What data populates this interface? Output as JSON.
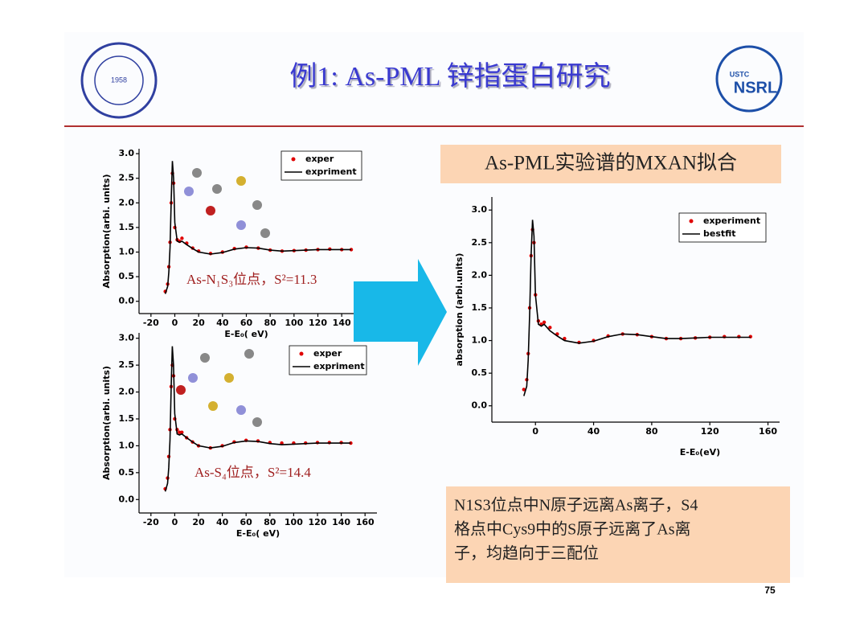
{
  "header": {
    "title": "例1: As-PML 锌指蛋白研究",
    "logo_left": "1958",
    "logo_right_top": "USTC",
    "logo_right_bottom": "NSRL"
  },
  "summary": {
    "lines": [
      "N1S3位点中N原子远离As离子，S4",
      "格点中Cys9中的S原子远离了As离",
      "子，均趋向于三配位"
    ]
  },
  "page_number": "75",
  "chart_data": [
    {
      "type": "line",
      "xlabel": "E-E₀( eV)",
      "ylabel": "Absorption(arbi. units)",
      "annotation": "As-N₁S₃位点，S²=11.3",
      "xlim": [
        -30,
        150
      ],
      "xticks": [
        -20,
        0,
        20,
        40,
        60,
        80,
        100,
        120,
        140
      ],
      "ylim": [
        -0.25,
        3.1
      ],
      "yticks": [
        {
          "value": 0,
          "label": "0.0"
        },
        0.5,
        {
          "value": 1,
          "label": "1.0"
        },
        1.5,
        {
          "value": 2,
          "label": "2.0"
        },
        2.5,
        {
          "value": 3,
          "label": "3.0"
        }
      ],
      "legend": "upper right",
      "x": [
        -8,
        -6,
        -5,
        -4,
        -3,
        -2,
        -1,
        0,
        2,
        4,
        6,
        10,
        15,
        20,
        30,
        40,
        50,
        60,
        70,
        80,
        90,
        100,
        110,
        120,
        130,
        140,
        148
      ],
      "series": [
        {
          "name": "exper",
          "color": "#e00000",
          "mode": "markers",
          "values": [
            0.2,
            0.35,
            0.7,
            1.2,
            2.0,
            2.6,
            2.4,
            1.5,
            1.25,
            1.22,
            1.28,
            1.18,
            1.08,
            1.02,
            0.97,
            1.0,
            1.07,
            1.1,
            1.08,
            1.04,
            1.02,
            1.03,
            1.04,
            1.05,
            1.06,
            1.05,
            1.05
          ]
        },
        {
          "name": "expriment",
          "color": "#000000",
          "mode": "line",
          "values": [
            0.15,
            0.3,
            0.6,
            1.1,
            2.1,
            2.85,
            2.5,
            1.6,
            1.22,
            1.2,
            1.22,
            1.15,
            1.07,
            1.0,
            0.96,
            0.99,
            1.06,
            1.09,
            1.08,
            1.04,
            1.02,
            1.03,
            1.04,
            1.05,
            1.05,
            1.05,
            1.05
          ]
        }
      ]
    },
    {
      "type": "line",
      "xlabel": "E-E₀( eV)",
      "ylabel": "Absorption(arbi. units)",
      "annotation": "As-S₄位点，S²=14.4",
      "xlim": [
        -30,
        170
      ],
      "xticks": [
        -20,
        0,
        20,
        40,
        60,
        80,
        100,
        120,
        140,
        160
      ],
      "ylim": [
        -0.25,
        3.1
      ],
      "yticks": [
        {
          "value": 0,
          "label": "0.0"
        },
        0.5,
        {
          "value": 1,
          "label": "1.0"
        },
        1.5,
        {
          "value": 2,
          "label": "2.0"
        },
        2.5,
        {
          "value": 3,
          "label": "3.0"
        }
      ],
      "legend": "upper right",
      "x": [
        -8,
        -6,
        -5,
        -4,
        -3,
        -2,
        -1,
        0,
        2,
        4,
        6,
        10,
        15,
        20,
        30,
        40,
        50,
        60,
        70,
        80,
        90,
        100,
        110,
        120,
        130,
        140,
        148
      ],
      "series": [
        {
          "name": "exper",
          "color": "#e00000",
          "mode": "markers",
          "values": [
            0.2,
            0.4,
            0.8,
            1.3,
            2.1,
            2.5,
            2.3,
            1.5,
            1.3,
            1.25,
            1.25,
            1.15,
            1.07,
            1.0,
            0.96,
            1.0,
            1.07,
            1.1,
            1.09,
            1.06,
            1.05,
            1.05,
            1.05,
            1.06,
            1.06,
            1.06,
            1.05
          ]
        },
        {
          "name": "expriment",
          "color": "#000000",
          "mode": "line",
          "values": [
            0.15,
            0.3,
            0.6,
            1.1,
            2.1,
            2.85,
            2.5,
            1.6,
            1.22,
            1.2,
            1.22,
            1.15,
            1.07,
            1.0,
            0.96,
            0.99,
            1.06,
            1.09,
            1.08,
            1.04,
            1.02,
            1.03,
            1.04,
            1.05,
            1.05,
            1.05,
            1.05
          ]
        }
      ]
    },
    {
      "type": "line",
      "title": "As-PML实验谱的MXAN拟合",
      "xlabel": "E-E₀(eV)",
      "ylabel": "absorption (arbi.units)",
      "xlim": [
        -30,
        168
      ],
      "xticks": [
        0,
        40,
        80,
        120,
        160
      ],
      "ylim": [
        -0.25,
        3.2
      ],
      "yticks": [
        {
          "value": 0,
          "label": "0.0"
        },
        0.5,
        {
          "value": 1,
          "label": "1.0"
        },
        1.5,
        {
          "value": 2,
          "label": "2.0"
        },
        2.5,
        {
          "value": 3,
          "label": "3.0"
        }
      ],
      "legend": "upper right",
      "x": [
        -8,
        -6,
        -5,
        -4,
        -3,
        -2,
        -1,
        0,
        2,
        4,
        6,
        10,
        15,
        20,
        30,
        40,
        50,
        60,
        70,
        80,
        90,
        100,
        110,
        120,
        130,
        140,
        148
      ],
      "series": [
        {
          "name": "experiment",
          "color": "#e00000",
          "mode": "markers",
          "values": [
            0.25,
            0.4,
            0.8,
            1.5,
            2.3,
            2.7,
            2.5,
            1.7,
            1.3,
            1.25,
            1.28,
            1.2,
            1.1,
            1.03,
            0.97,
            1.0,
            1.07,
            1.1,
            1.09,
            1.06,
            1.03,
            1.03,
            1.04,
            1.05,
            1.06,
            1.06,
            1.06
          ]
        },
        {
          "name": "bestfit",
          "color": "#000000",
          "mode": "line",
          "values": [
            0.15,
            0.3,
            0.7,
            1.4,
            2.3,
            2.85,
            2.6,
            1.7,
            1.25,
            1.22,
            1.25,
            1.15,
            1.07,
            1.0,
            0.96,
            0.99,
            1.06,
            1.1,
            1.09,
            1.06,
            1.03,
            1.03,
            1.04,
            1.05,
            1.05,
            1.05,
            1.05
          ]
        }
      ]
    }
  ]
}
